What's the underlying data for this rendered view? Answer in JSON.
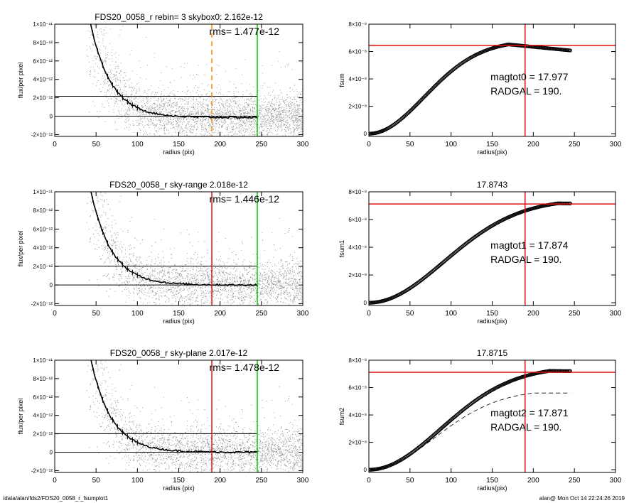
{
  "footer": {
    "path": "/data/alan/fds2/FDS20_0058_r_fsumplot1",
    "stamp": "alan@  Mon Oct 14 22:24:26 2019"
  },
  "colors": {
    "red": "#e01010",
    "green": "#00d000",
    "orange": "#ff8c00",
    "points": "#8a8a8a",
    "profile": "#000000"
  },
  "chart_data": [
    {
      "type": "scatter",
      "title": "FDS20_0058_r rebin= 3    skybox0:  2.162e-12",
      "annotation": "rms= 1.477e-12",
      "xlabel": "radius (pix)",
      "ylabel": "flux/per pixel",
      "xlim": [
        0,
        300
      ],
      "ylim": [
        -2.2e-12,
        1e-11
      ],
      "xticks": [
        "0",
        "50",
        "100",
        "150",
        "200",
        "250",
        "300"
      ],
      "yticks": [
        {
          "v": -2e-12,
          "l": "-2×10⁻¹²"
        },
        {
          "v": 0,
          "l": "0"
        },
        {
          "v": 2e-12,
          "l": "2×10⁻¹²"
        },
        {
          "v": 4e-12,
          "l": "4×10⁻¹²"
        },
        {
          "v": 6e-12,
          "l": "6×10⁻¹²"
        },
        {
          "v": 8e-12,
          "l": "8×10⁻¹²"
        },
        {
          "v": 1e-11,
          "l": "1×10⁻¹¹"
        }
      ],
      "sky_level": 2.162e-12,
      "vlines": [
        {
          "x": 190,
          "color": "orange",
          "dashed": true
        },
        {
          "x": 245,
          "color": "green",
          "dashed": false
        }
      ],
      "profile": {
        "amp": 2.4e-11,
        "scale": 25,
        "r0": 22,
        "offset": -1.5e-13
      }
    },
    {
      "type": "line",
      "title": "",
      "annotation_lines": [
        "magtot0 =  17.977",
        "RADGAL =    190."
      ],
      "xlabel": "radius(pix)",
      "ylabel": "fsum",
      "xlim": [
        0,
        300
      ],
      "ylim": [
        -2e-09,
        8e-08
      ],
      "xticks": [
        "0",
        "50",
        "100",
        "150",
        "200",
        "250",
        "300"
      ],
      "yticks": [
        {
          "v": 0,
          "l": "0"
        },
        {
          "v": 2e-08,
          "l": "2×10⁻⁸"
        },
        {
          "v": 4e-08,
          "l": "4×10⁻⁸"
        },
        {
          "v": 6e-08,
          "l": "6×10⁻⁸"
        },
        {
          "v": 8e-08,
          "l": "8×10⁻⁸"
        }
      ],
      "hline": 6.45e-08,
      "vline": 190,
      "curve": {
        "plateau": 6.52e-08,
        "peak_r": 170,
        "decline_end": 6.08e-08,
        "r_max": 245
      }
    },
    {
      "type": "scatter",
      "title": "FDS20_0058_r sky-range  2.018e-12",
      "annotation": "rms= 1.446e-12",
      "xlabel": "radius (pix)",
      "ylabel": "flux/per pixel",
      "xlim": [
        0,
        300
      ],
      "ylim": [
        -2.2e-12,
        1e-11
      ],
      "xticks": [
        "0",
        "50",
        "100",
        "150",
        "200",
        "250",
        "300"
      ],
      "yticks": [
        {
          "v": -2e-12,
          "l": "-2×10⁻¹²"
        },
        {
          "v": 0,
          "l": "0"
        },
        {
          "v": 2e-12,
          "l": "2×10⁻¹²"
        },
        {
          "v": 4e-12,
          "l": "4×10⁻¹²"
        },
        {
          "v": 6e-12,
          "l": "6×10⁻¹²"
        },
        {
          "v": 8e-12,
          "l": "8×10⁻¹²"
        },
        {
          "v": 1e-11,
          "l": "1×10⁻¹¹"
        }
      ],
      "sky_level": 2.018e-12,
      "vlines": [
        {
          "x": 190,
          "color": "red",
          "dashed": false
        },
        {
          "x": 245,
          "color": "green",
          "dashed": false
        }
      ],
      "profile": {
        "amp": 2.4e-11,
        "scale": 25,
        "r0": 22,
        "offset": 0
      }
    },
    {
      "type": "line",
      "title": "17.8743",
      "annotation_lines": [
        "magtot1 =  17.874",
        "RADGAL =    190."
      ],
      "xlabel": "radius(pix)",
      "ylabel": "fsum1",
      "xlim": [
        0,
        300
      ],
      "ylim": [
        -2e-09,
        8e-08
      ],
      "xticks": [
        "0",
        "50",
        "100",
        "150",
        "200",
        "250",
        "300"
      ],
      "yticks": [
        {
          "v": 0,
          "l": "0"
        },
        {
          "v": 2e-08,
          "l": "2×10⁻⁸"
        },
        {
          "v": 4e-08,
          "l": "4×10⁻⁸"
        },
        {
          "v": 6e-08,
          "l": "6×10⁻⁸"
        },
        {
          "v": 8e-08,
          "l": "8×10⁻⁸"
        }
      ],
      "hline": 7.12e-08,
      "vline": 190,
      "curve": {
        "plateau": 7.17e-08,
        "peak_r": 230,
        "decline_end": 7.16e-08,
        "r_max": 245
      }
    },
    {
      "type": "scatter",
      "title": "FDS20_0058_r sky-plane  2.017e-12",
      "annotation": "rms= 1.478e-12",
      "xlabel": "radius (pix)",
      "ylabel": "flux/per pixel",
      "xlim": [
        0,
        300
      ],
      "ylim": [
        -2.2e-12,
        1e-11
      ],
      "xticks": [
        "0",
        "50",
        "100",
        "150",
        "200",
        "250",
        "300"
      ],
      "yticks": [
        {
          "v": -2e-12,
          "l": "-2×10⁻¹²"
        },
        {
          "v": 0,
          "l": "0"
        },
        {
          "v": 2e-12,
          "l": "2×10⁻¹²"
        },
        {
          "v": 4e-12,
          "l": "4×10⁻¹²"
        },
        {
          "v": 6e-12,
          "l": "6×10⁻¹²"
        },
        {
          "v": 8e-12,
          "l": "8×10⁻¹²"
        },
        {
          "v": 1e-11,
          "l": "1×10⁻¹¹"
        }
      ],
      "sky_level": 2.017e-12,
      "vlines": [
        {
          "x": 190,
          "color": "red",
          "dashed": false
        },
        {
          "x": 245,
          "color": "green",
          "dashed": false
        }
      ],
      "profile": {
        "amp": 2.4e-11,
        "scale": 25,
        "r0": 22,
        "offset": 0
      }
    },
    {
      "type": "line",
      "title": "17.8715",
      "annotation_lines": [
        "magtot2 =  17.871",
        "RADGAL =    190."
      ],
      "xlabel": "radius(pix)",
      "ylabel": "fsum2",
      "xlim": [
        0,
        300
      ],
      "ylim": [
        -2e-09,
        8e-08
      ],
      "xticks": [
        "0",
        "50",
        "100",
        "150",
        "200",
        "250",
        "300"
      ],
      "yticks": [
        {
          "v": 0,
          "l": "0"
        },
        {
          "v": 2e-08,
          "l": "2×10⁻⁸"
        },
        {
          "v": 4e-08,
          "l": "4×10⁻⁸"
        },
        {
          "v": 6e-08,
          "l": "6×10⁻⁸"
        },
        {
          "v": 8e-08,
          "l": "8×10⁻⁸"
        }
      ],
      "hline": 7.12e-08,
      "vline": 190,
      "curve": {
        "plateau": 7.22e-08,
        "peak_r": 220,
        "decline_end": 7.2e-08,
        "r_max": 245
      },
      "dashed_curve": {
        "plateau": 5.6e-08,
        "r_max": 245
      }
    }
  ]
}
